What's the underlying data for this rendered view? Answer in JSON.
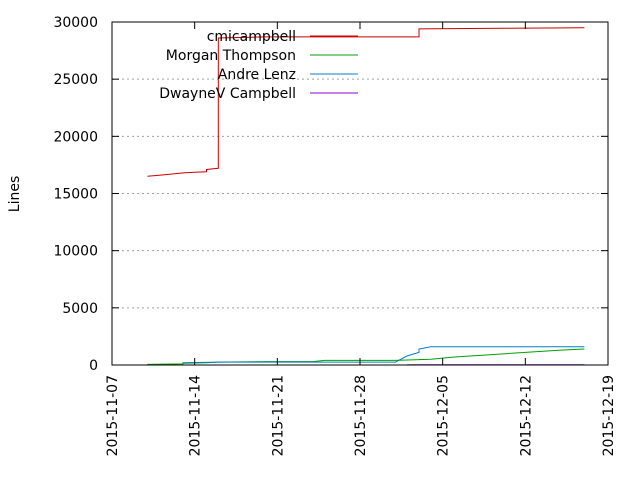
{
  "chart_data": {
    "type": "line",
    "title": "",
    "xlabel": "",
    "ylabel": "Lines",
    "xlim": [
      "2015-11-07",
      "2015-12-19"
    ],
    "ylim": [
      0,
      30000
    ],
    "x_ticks": [
      "2015-11-07",
      "2015-11-14",
      "2015-11-21",
      "2015-11-28",
      "2015-12-05",
      "2015-12-12",
      "2015-12-19"
    ],
    "y_ticks": [
      0,
      5000,
      10000,
      15000,
      20000,
      25000,
      30000
    ],
    "y_tick_labels": [
      "0",
      "5000",
      "10000",
      "15000",
      "20000",
      "25000",
      "30000"
    ],
    "grid": true,
    "legend_position": "top-left",
    "series": [
      {
        "name": "cmicampbell",
        "color": "#cc0000",
        "points": [
          [
            "2015-11-10",
            16500
          ],
          [
            "2015-11-11",
            16600
          ],
          [
            "2015-11-12",
            16700
          ],
          [
            "2015-11-13",
            16800
          ],
          [
            "2015-11-14",
            16850
          ],
          [
            "2015-11-15",
            16900
          ],
          [
            "2015-11-15",
            17100
          ],
          [
            "2015-11-16",
            17200
          ],
          [
            "2015-11-16",
            28600
          ],
          [
            "2015-11-20",
            28700
          ],
          [
            "2015-11-25",
            28700
          ],
          [
            "2015-12-01",
            28700
          ],
          [
            "2015-12-03",
            28700
          ],
          [
            "2015-12-03",
            29400
          ],
          [
            "2015-12-10",
            29450
          ],
          [
            "2015-12-17",
            29500
          ]
        ]
      },
      {
        "name": "Morgan Thompson",
        "color": "#00a000",
        "points": [
          [
            "2015-11-10",
            50
          ],
          [
            "2015-11-13",
            100
          ],
          [
            "2015-11-13",
            200
          ],
          [
            "2015-11-16",
            250
          ],
          [
            "2015-11-20",
            300
          ],
          [
            "2015-11-24",
            300
          ],
          [
            "2015-11-25",
            400
          ],
          [
            "2015-12-01",
            400
          ],
          [
            "2015-12-04",
            500
          ],
          [
            "2015-12-06",
            700
          ],
          [
            "2015-12-09",
            900
          ],
          [
            "2015-12-12",
            1100
          ],
          [
            "2015-12-15",
            1300
          ],
          [
            "2015-12-17",
            1400
          ]
        ]
      },
      {
        "name": "Andre Lenz",
        "color": "#0080c0",
        "points": [
          [
            "2015-11-13",
            150
          ],
          [
            "2015-11-15",
            200
          ],
          [
            "2015-11-16",
            250
          ],
          [
            "2015-12-01",
            250
          ],
          [
            "2015-12-02",
            800
          ],
          [
            "2015-12-03",
            1100
          ],
          [
            "2015-12-03",
            1400
          ],
          [
            "2015-12-04",
            1600
          ],
          [
            "2015-12-17",
            1600
          ]
        ]
      },
      {
        "name": "DwayneV Campbell",
        "color": "#9400d3",
        "points": [
          [
            "2015-12-02",
            30
          ],
          [
            "2015-12-17",
            30
          ]
        ]
      }
    ]
  }
}
